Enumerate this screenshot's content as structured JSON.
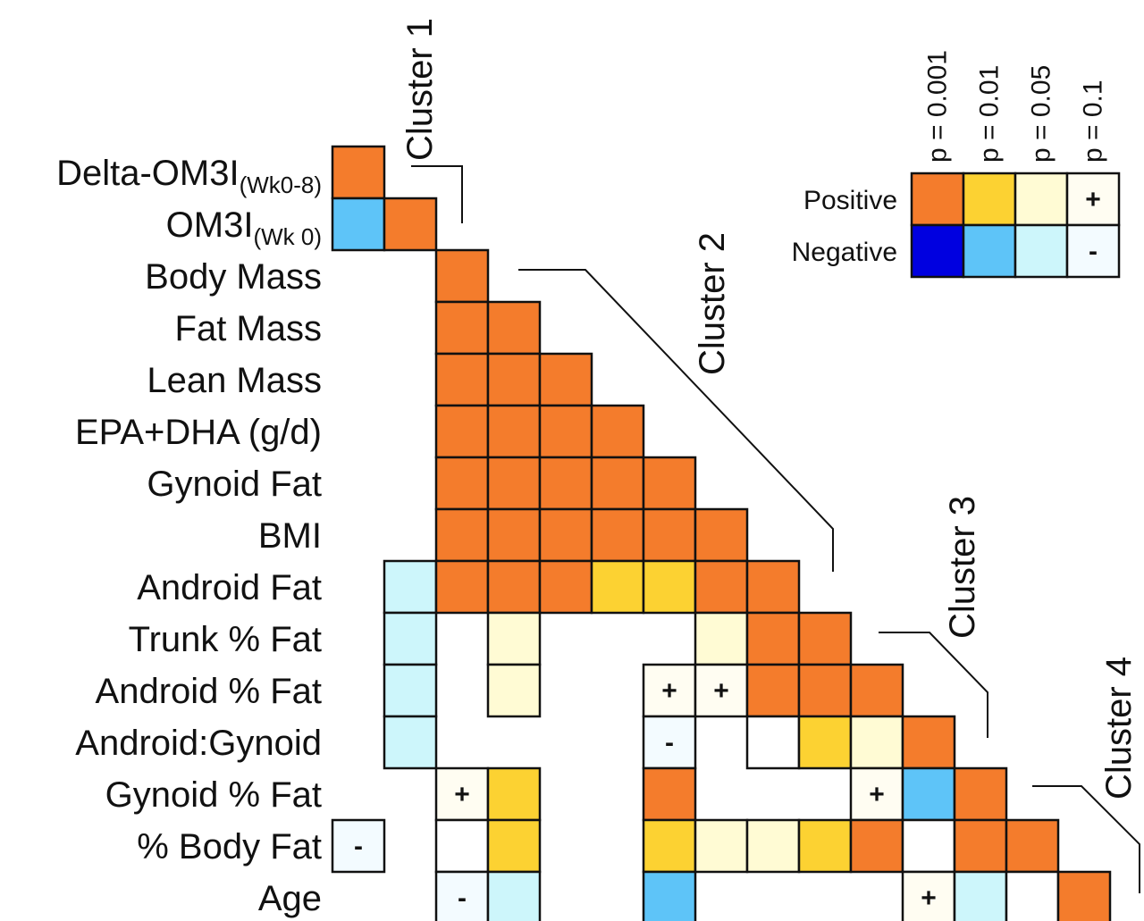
{
  "chart_data": {
    "type": "heatmap",
    "variables": [
      "Delta-OM3I",
      "OM3I",
      "Body Mass",
      "Fat Mass",
      "Lean Mass",
      "EPA+DHA (g/d)",
      "Gynoid Fat",
      "BMI",
      "Android Fat",
      "Trunk % Fat",
      "Android % Fat",
      "Android:Gynoid",
      "Gynoid % Fat",
      "% Body Fat",
      "Age"
    ],
    "label_subscripts": [
      "(Wk0-8)",
      "(Wk 0)",
      "",
      "",
      "",
      "",
      "",
      "",
      "",
      "",
      "",
      "",
      "",
      "",
      ""
    ],
    "cells": [
      {
        "row": 0,
        "col": 0,
        "code": "P1"
      },
      {
        "row": 1,
        "col": 0,
        "code": "N2"
      },
      {
        "row": 1,
        "col": 1,
        "code": "P1"
      },
      {
        "row": 2,
        "col": 2,
        "code": "P1"
      },
      {
        "row": 3,
        "col": 2,
        "code": "P1"
      },
      {
        "row": 3,
        "col": 3,
        "code": "P1"
      },
      {
        "row": 4,
        "col": 2,
        "code": "P1"
      },
      {
        "row": 4,
        "col": 3,
        "code": "P1"
      },
      {
        "row": 4,
        "col": 4,
        "code": "P1"
      },
      {
        "row": 5,
        "col": 2,
        "code": "P1"
      },
      {
        "row": 5,
        "col": 3,
        "code": "P1"
      },
      {
        "row": 5,
        "col": 4,
        "code": "P1"
      },
      {
        "row": 5,
        "col": 5,
        "code": "P1"
      },
      {
        "row": 6,
        "col": 2,
        "code": "P1"
      },
      {
        "row": 6,
        "col": 3,
        "code": "P1"
      },
      {
        "row": 6,
        "col": 4,
        "code": "P1"
      },
      {
        "row": 6,
        "col": 5,
        "code": "P1"
      },
      {
        "row": 6,
        "col": 6,
        "code": "P1"
      },
      {
        "row": 7,
        "col": 2,
        "code": "P1"
      },
      {
        "row": 7,
        "col": 3,
        "code": "P1"
      },
      {
        "row": 7,
        "col": 4,
        "code": "P1"
      },
      {
        "row": 7,
        "col": 5,
        "code": "P1"
      },
      {
        "row": 7,
        "col": 6,
        "code": "P1"
      },
      {
        "row": 7,
        "col": 7,
        "code": "P1"
      },
      {
        "row": 8,
        "col": 1,
        "code": "N3"
      },
      {
        "row": 8,
        "col": 2,
        "code": "P1"
      },
      {
        "row": 8,
        "col": 3,
        "code": "P1"
      },
      {
        "row": 8,
        "col": 4,
        "code": "P1"
      },
      {
        "row": 8,
        "col": 5,
        "code": "P2"
      },
      {
        "row": 8,
        "col": 6,
        "code": "P2"
      },
      {
        "row": 8,
        "col": 7,
        "code": "P1"
      },
      {
        "row": 8,
        "col": 8,
        "code": "P1"
      },
      {
        "row": 9,
        "col": 1,
        "code": "N3"
      },
      {
        "row": 9,
        "col": 3,
        "code": "P3"
      },
      {
        "row": 9,
        "col": 7,
        "code": "P3"
      },
      {
        "row": 9,
        "col": 8,
        "code": "P1"
      },
      {
        "row": 9,
        "col": 9,
        "code": "P1"
      },
      {
        "row": 10,
        "col": 1,
        "code": "N3"
      },
      {
        "row": 10,
        "col": 3,
        "code": "P3"
      },
      {
        "row": 10,
        "col": 6,
        "code": "P4"
      },
      {
        "row": 10,
        "col": 7,
        "code": "P4"
      },
      {
        "row": 10,
        "col": 8,
        "code": "P1"
      },
      {
        "row": 10,
        "col": 9,
        "code": "P1"
      },
      {
        "row": 10,
        "col": 10,
        "code": "P1"
      },
      {
        "row": 11,
        "col": 1,
        "code": "N3"
      },
      {
        "row": 11,
        "col": 6,
        "code": "N4"
      },
      {
        "row": 11,
        "col": 8,
        "code": "E"
      },
      {
        "row": 11,
        "col": 9,
        "code": "P2"
      },
      {
        "row": 11,
        "col": 10,
        "code": "P3"
      },
      {
        "row": 11,
        "col": 11,
        "code": "P1"
      },
      {
        "row": 12,
        "col": 2,
        "code": "P4"
      },
      {
        "row": 12,
        "col": 3,
        "code": "P2"
      },
      {
        "row": 12,
        "col": 6,
        "code": "P1"
      },
      {
        "row": 12,
        "col": 10,
        "code": "P4"
      },
      {
        "row": 12,
        "col": 11,
        "code": "N2"
      },
      {
        "row": 12,
        "col": 12,
        "code": "P1"
      },
      {
        "row": 13,
        "col": 0,
        "code": "N4"
      },
      {
        "row": 13,
        "col": 2,
        "code": "E"
      },
      {
        "row": 13,
        "col": 3,
        "code": "P2"
      },
      {
        "row": 13,
        "col": 6,
        "code": "P2"
      },
      {
        "row": 13,
        "col": 7,
        "code": "P3"
      },
      {
        "row": 13,
        "col": 8,
        "code": "P3"
      },
      {
        "row": 13,
        "col": 9,
        "code": "P2"
      },
      {
        "row": 13,
        "col": 10,
        "code": "P1"
      },
      {
        "row": 13,
        "col": 11,
        "code": "E"
      },
      {
        "row": 13,
        "col": 12,
        "code": "P1"
      },
      {
        "row": 13,
        "col": 13,
        "code": "P1"
      },
      {
        "row": 14,
        "col": 2,
        "code": "N4"
      },
      {
        "row": 14,
        "col": 3,
        "code": "N3"
      },
      {
        "row": 14,
        "col": 6,
        "code": "N2"
      },
      {
        "row": 14,
        "col": 11,
        "code": "P4"
      },
      {
        "row": 14,
        "col": 12,
        "code": "N3"
      },
      {
        "row": 14,
        "col": 13,
        "code": "E"
      },
      {
        "row": 14,
        "col": 14,
        "code": "P1"
      }
    ],
    "legend": {
      "thresholds": [
        "p = 0.001",
        "p = 0.01",
        "p = 0.05",
        "p = 0.1"
      ],
      "rows": [
        "Positive",
        "Negative"
      ],
      "positive_codes": [
        "P1",
        "P2",
        "P3",
        "P4"
      ],
      "negative_codes": [
        "N1",
        "N2",
        "N3",
        "N4"
      ]
    },
    "codes": {
      "P1": {
        "color": "#f47c2c",
        "mark": ""
      },
      "P2": {
        "color": "#fcd232",
        "mark": ""
      },
      "P3": {
        "color": "#fffbd4",
        "mark": ""
      },
      "P4": {
        "color": "#fffdf2",
        "mark": "+"
      },
      "N1": {
        "color": "#0000e0",
        "mark": ""
      },
      "N2": {
        "color": "#5ec4f8",
        "mark": ""
      },
      "N3": {
        "color": "#cdf6fb",
        "mark": ""
      },
      "N4": {
        "color": "#f3fbff",
        "mark": "-"
      },
      "E": {
        "color": "#ffffff",
        "mark": ""
      }
    },
    "clusters": [
      "Cluster 1",
      "Cluster 2",
      "Cluster 3",
      "Cluster 4"
    ]
  }
}
